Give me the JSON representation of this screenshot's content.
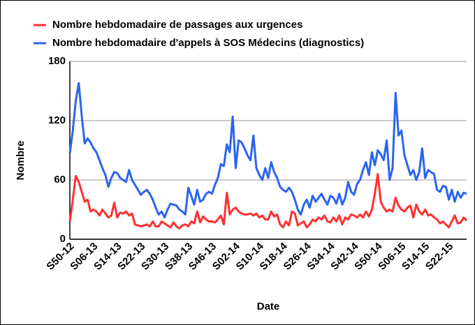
{
  "chart_data": {
    "type": "line",
    "ylabel": "Nombre",
    "xlabel": "Date",
    "categories": [
      "S50-12",
      null,
      null,
      null,
      null,
      null,
      null,
      null,
      "S06-13",
      null,
      null,
      null,
      null,
      null,
      null,
      null,
      "S14-13",
      null,
      null,
      null,
      null,
      null,
      null,
      null,
      "S22-13",
      null,
      null,
      null,
      null,
      null,
      null,
      null,
      "S30-13",
      null,
      null,
      null,
      null,
      null,
      null,
      null,
      "S38-13",
      null,
      null,
      null,
      null,
      null,
      null,
      null,
      "S46-13",
      null,
      null,
      null,
      null,
      null,
      null,
      null,
      "S02-14",
      null,
      null,
      null,
      null,
      null,
      null,
      null,
      "S10-14",
      null,
      null,
      null,
      null,
      null,
      null,
      null,
      "S18-14",
      null,
      null,
      null,
      null,
      null,
      null,
      null,
      "S26-14",
      null,
      null,
      null,
      null,
      null,
      null,
      null,
      "S34-14",
      null,
      null,
      null,
      null,
      null,
      null,
      null,
      "S42-14",
      null,
      null,
      null,
      null,
      null,
      null,
      null,
      "S50-14",
      null,
      null,
      null,
      null,
      null,
      null,
      null,
      "S06-15",
      null,
      null,
      null,
      null,
      null,
      null,
      null,
      "S14-15",
      null,
      null,
      null,
      null,
      null,
      null,
      null,
      "S22-15",
      null,
      null,
      null,
      null,
      null,
      null
    ],
    "series": [
      {
        "name": "Nombre hebdomadaire de passages aux urgences",
        "color": "#ff3030",
        "values": [
          18,
          40,
          64,
          58,
          48,
          38,
          40,
          28,
          30,
          28,
          24,
          30,
          26,
          22,
          24,
          37,
          22,
          27,
          26,
          28,
          24,
          26,
          15,
          14,
          13,
          14,
          15,
          13,
          18,
          13,
          13,
          18,
          16,
          14,
          12,
          17,
          13,
          11,
          14,
          15,
          13,
          18,
          16,
          28,
          17,
          23,
          20,
          18,
          18,
          17,
          20,
          24,
          15,
          47,
          25,
          30,
          32,
          28,
          26,
          25,
          25,
          26,
          24,
          26,
          22,
          24,
          20,
          20,
          28,
          23,
          25,
          15,
          12,
          18,
          14,
          28,
          26,
          14,
          16,
          18,
          12,
          15,
          20,
          18,
          22,
          20,
          24,
          18,
          17,
          22,
          18,
          24,
          15,
          22,
          20,
          25,
          24,
          22,
          25,
          22,
          28,
          23,
          30,
          46,
          66,
          38,
          32,
          28,
          30,
          28,
          42,
          34,
          30,
          28,
          32,
          34,
          22,
          35,
          28,
          25,
          30,
          24,
          25,
          22,
          20,
          16,
          18,
          15,
          12,
          18,
          24,
          16,
          17,
          22,
          19
        ]
      },
      {
        "name": "Nombre hebdomadaire d'appels à SOS Médecins (diagnostics)",
        "color": "#2a64f0",
        "values": [
          87,
          110,
          140,
          158,
          125,
          97,
          102,
          98,
          92,
          88,
          80,
          72,
          65,
          53,
          62,
          68,
          67,
          62,
          60,
          58,
          70,
          60,
          55,
          50,
          45,
          48,
          50,
          46,
          40,
          32,
          25,
          28,
          22,
          30,
          36,
          35,
          34,
          30,
          28,
          25,
          52,
          44,
          35,
          50,
          38,
          40,
          46,
          48,
          46,
          55,
          62,
          76,
          74,
          96,
          88,
          124,
          72,
          100,
          98,
          92,
          85,
          80,
          105,
          72,
          65,
          60,
          72,
          62,
          78,
          68,
          62,
          53,
          50,
          48,
          52,
          48,
          40,
          30,
          25,
          35,
          40,
          32,
          44,
          38,
          42,
          46,
          40,
          35,
          44,
          42,
          36,
          46,
          35,
          42,
          58,
          48,
          45,
          56,
          60,
          70,
          78,
          65,
          88,
          75,
          90,
          86,
          80,
          100,
          60,
          72,
          148,
          105,
          110,
          85,
          75,
          65,
          70,
          60,
          68,
          92,
          62,
          70,
          68,
          66,
          50,
          48,
          54,
          53,
          40,
          50,
          38,
          48,
          42,
          47,
          46
        ]
      }
    ],
    "ylim": [
      0,
      180
    ],
    "yticks": [
      0,
      60,
      120,
      180
    ],
    "grid": true,
    "legend": "top-left"
  }
}
